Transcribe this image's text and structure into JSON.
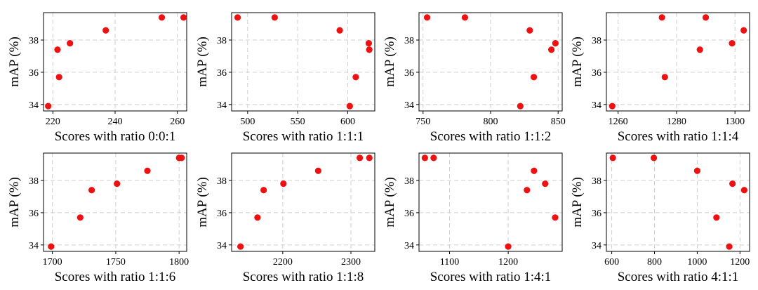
{
  "chart_data": [
    {
      "type": "scatter",
      "xlabel": "Scores with ratio 0:0:1",
      "ylabel": "mAP (%)",
      "xlim": [
        217,
        263
      ],
      "ylim": [
        33.6,
        39.7
      ],
      "xticks": [
        220,
        240,
        260
      ],
      "yticks": [
        34,
        36,
        38
      ],
      "color": "#ee1111",
      "points": [
        [
          218.5,
          33.9
        ],
        [
          221.5,
          37.4
        ],
        [
          222,
          35.7
        ],
        [
          225.5,
          37.8
        ],
        [
          237,
          38.6
        ],
        [
          255,
          39.4
        ],
        [
          262,
          39.4
        ]
      ]
    },
    {
      "type": "scatter",
      "xlabel": "Scores with ratio 1:1:1",
      "ylabel": "mAP (%)",
      "xlim": [
        484,
        627
      ],
      "ylim": [
        33.6,
        39.7
      ],
      "xticks": [
        500,
        550,
        600
      ],
      "yticks": [
        34,
        36,
        38
      ],
      "color": "#ee1111",
      "points": [
        [
          490,
          39.4
        ],
        [
          527,
          39.4
        ],
        [
          592,
          38.6
        ],
        [
          602,
          33.9
        ],
        [
          608,
          35.7
        ],
        [
          621,
          37.8
        ],
        [
          621.5,
          37.4
        ]
      ]
    },
    {
      "type": "scatter",
      "xlabel": "Scores with ratio 1:1:2",
      "ylabel": "mAP (%)",
      "xlim": [
        747,
        853
      ],
      "ylim": [
        33.6,
        39.7
      ],
      "xticks": [
        750,
        800,
        850
      ],
      "yticks": [
        34,
        36,
        38
      ],
      "color": "#ee1111",
      "points": [
        [
          753,
          39.4
        ],
        [
          781,
          39.4
        ],
        [
          822,
          33.9
        ],
        [
          829,
          38.6
        ],
        [
          832,
          35.7
        ],
        [
          845,
          37.4
        ],
        [
          848,
          37.8
        ]
      ]
    },
    {
      "type": "scatter",
      "xlabel": "Scores with ratio 1:1:4",
      "ylabel": "mAP (%)",
      "xlim": [
        1256,
        1305
      ],
      "ylim": [
        33.6,
        39.7
      ],
      "xticks": [
        1260,
        1280,
        1300
      ],
      "yticks": [
        34,
        36,
        38
      ],
      "color": "#ee1111",
      "points": [
        [
          1258,
          33.9
        ],
        [
          1275,
          39.4
        ],
        [
          1276,
          35.7
        ],
        [
          1288,
          37.4
        ],
        [
          1290,
          39.4
        ],
        [
          1299,
          37.8
        ],
        [
          1303,
          38.6
        ]
      ]
    },
    {
      "type": "scatter",
      "xlabel": "Scores with ratio 1:1:6",
      "ylabel": "mAP (%)",
      "xlim": [
        1693,
        1806
      ],
      "ylim": [
        33.6,
        39.7
      ],
      "xticks": [
        1700,
        1750,
        1800
      ],
      "yticks": [
        34,
        36,
        38
      ],
      "color": "#ee1111",
      "points": [
        [
          1699,
          33.9
        ],
        [
          1722,
          35.7
        ],
        [
          1731,
          37.4
        ],
        [
          1751,
          37.8
        ],
        [
          1775,
          38.6
        ],
        [
          1800,
          39.4
        ],
        [
          1802,
          39.4
        ]
      ]
    },
    {
      "type": "scatter",
      "xlabel": "Scores with ratio 1:1:8",
      "ylabel": "mAP (%)",
      "xlim": [
        2125,
        2335
      ],
      "ylim": [
        33.6,
        39.7
      ],
      "xticks": [
        2200,
        2300
      ],
      "yticks": [
        34,
        36,
        38
      ],
      "color": "#ee1111",
      "points": [
        [
          2138,
          33.9
        ],
        [
          2163,
          35.7
        ],
        [
          2172,
          37.4
        ],
        [
          2201,
          37.8
        ],
        [
          2252,
          38.6
        ],
        [
          2313,
          39.4
        ],
        [
          2327,
          39.4
        ]
      ]
    },
    {
      "type": "scatter",
      "xlabel": "Scores with ratio 1:4:1",
      "ylabel": "mAP (%)",
      "xlim": [
        1048,
        1292
      ],
      "ylim": [
        33.6,
        39.7
      ],
      "xticks": [
        1100,
        1200
      ],
      "yticks": [
        34,
        36,
        38
      ],
      "color": "#ee1111",
      "points": [
        [
          1058,
          39.4
        ],
        [
          1073,
          39.4
        ],
        [
          1200,
          33.9
        ],
        [
          1232,
          37.4
        ],
        [
          1244,
          38.6
        ],
        [
          1263,
          37.8
        ],
        [
          1280,
          35.7
        ]
      ]
    },
    {
      "type": "scatter",
      "xlabel": "Scores with ratio 4:1:1",
      "ylabel": "mAP (%)",
      "xlim": [
        575,
        1245
      ],
      "ylim": [
        33.6,
        39.7
      ],
      "xticks": [
        600,
        800,
        1000,
        1200
      ],
      "yticks": [
        34,
        36,
        38
      ],
      "color": "#ee1111",
      "points": [
        [
          605,
          39.4
        ],
        [
          797,
          39.4
        ],
        [
          1000,
          38.6
        ],
        [
          1090,
          35.7
        ],
        [
          1150,
          33.9
        ],
        [
          1165,
          37.8
        ],
        [
          1220,
          37.4
        ]
      ]
    }
  ]
}
